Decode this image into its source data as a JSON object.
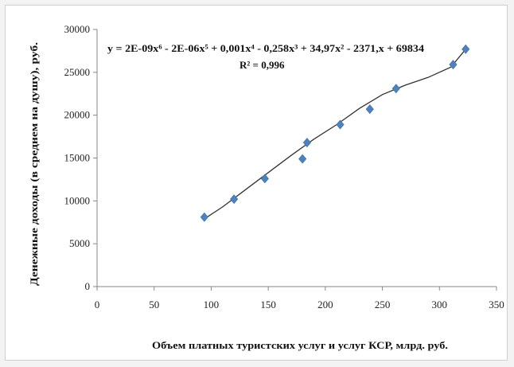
{
  "chart_data": {
    "type": "scatter",
    "title": "",
    "xlabel": "Объем платных туристских услуг и услуг КСР, млрд. руб.",
    "ylabel": "Денежные доходы (в среднем на душу), руб.",
    "xlim": [
      0,
      350
    ],
    "ylim": [
      0,
      30000
    ],
    "x_ticks": [
      0,
      50,
      100,
      150,
      200,
      250,
      300,
      350
    ],
    "y_ticks": [
      0,
      5000,
      10000,
      15000,
      20000,
      25000,
      30000
    ],
    "x_tick_labels": [
      "0",
      "50",
      "100",
      "150",
      "200",
      "250",
      "300",
      "350"
    ],
    "y_tick_labels": [
      "0",
      "5000",
      "10000",
      "15000",
      "20000",
      "25000",
      "30000"
    ],
    "grid": false,
    "legend": "none",
    "marker_color": "#4f81bd",
    "series": [
      {
        "x": [
          94,
          120,
          147,
          180,
          184,
          213,
          239,
          262,
          312,
          323
        ],
        "y": [
          8100,
          10200,
          12600,
          14900,
          16800,
          18900,
          20700,
          23100,
          25900,
          27700
        ]
      }
    ],
    "trendline": {
      "type": "polynomial",
      "order": 6,
      "equation_text": "y = 2E-09x⁶ - 2E-06x⁵ + 0,001x⁴ - 0,258x³ + 34,97x² - 2371,x + 69834",
      "r2_text": "R² = 0,996",
      "x": [
        94,
        110,
        130,
        150,
        170,
        190,
        210,
        230,
        250,
        270,
        290,
        310,
        323
      ],
      "y": [
        7900,
        9300,
        11300,
        13300,
        15300,
        17200,
        18900,
        20800,
        22400,
        23500,
        24400,
        25600,
        27700
      ],
      "color": "#333333"
    }
  }
}
